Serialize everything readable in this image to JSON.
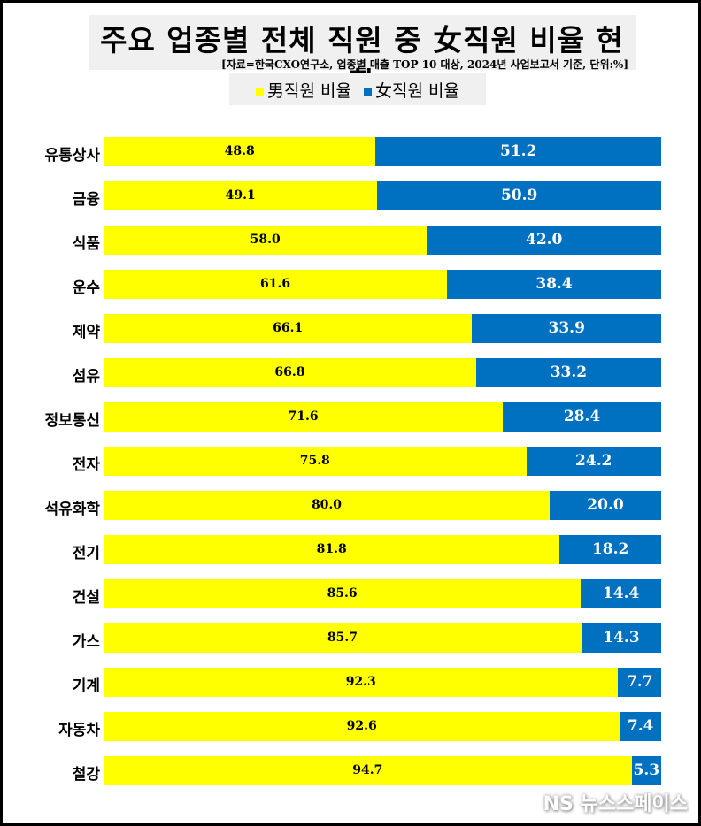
{
  "chart_data": {
    "type": "bar",
    "stacked": true,
    "orientation": "horizontal",
    "title": "주요 업종별 전체 직원 중 女직원 비율 현황",
    "subtitle": "[자료=한국CXO연구소, 업종별 매출 TOP 10 대상, 2024년 사업보고서 기준, 단위:%]",
    "categories": [
      "유통상사",
      "금융",
      "식품",
      "운수",
      "제약",
      "섬유",
      "정보통신",
      "전자",
      "석유화학",
      "전기",
      "건설",
      "가스",
      "기계",
      "자동차",
      "철강"
    ],
    "series": [
      {
        "name": "男직원 비율",
        "color": "#ffff00",
        "values": [
          48.8,
          49.1,
          58.0,
          61.6,
          66.1,
          66.8,
          71.6,
          75.8,
          80.0,
          81.8,
          85.6,
          85.7,
          92.3,
          92.6,
          94.7
        ]
      },
      {
        "name": "女직원 비율",
        "color": "#0070c0",
        "values": [
          51.2,
          50.9,
          42.0,
          38.4,
          33.9,
          33.2,
          28.4,
          24.2,
          20.0,
          18.2,
          14.4,
          14.3,
          7.7,
          7.4,
          5.3
        ]
      }
    ],
    "xlim": [
      0,
      100
    ],
    "legend": "top"
  },
  "watermark": "NS 뉴스스페이스"
}
